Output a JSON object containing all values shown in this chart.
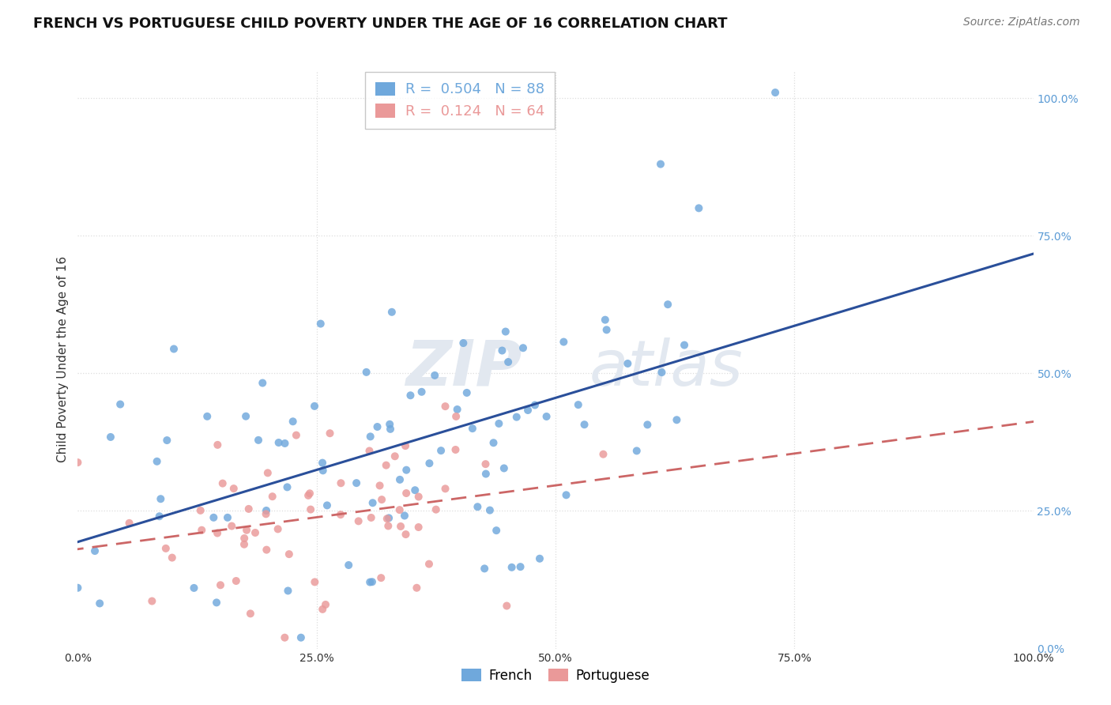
{
  "title": "FRENCH VS PORTUGUESE CHILD POVERTY UNDER THE AGE OF 16 CORRELATION CHART",
  "source": "Source: ZipAtlas.com",
  "ylabel": "Child Poverty Under the Age of 16",
  "xlim": [
    0,
    1
  ],
  "ylim": [
    0,
    1.05
  ],
  "xtick_labels": [
    "0.0%",
    "25.0%",
    "50.0%",
    "75.0%",
    "100.0%"
  ],
  "xtick_vals": [
    0,
    0.25,
    0.5,
    0.75,
    1.0
  ],
  "ytick_labels": [
    "0.0%",
    "25.0%",
    "50.0%",
    "75.0%",
    "100.0%"
  ],
  "ytick_vals": [
    0,
    0.25,
    0.5,
    0.75,
    1.0
  ],
  "french_color": "#6fa8dc",
  "portuguese_color": "#ea9999",
  "french_R": 0.504,
  "french_N": 88,
  "portuguese_R": 0.124,
  "portuguese_N": 64,
  "watermark_zip": "ZIP",
  "watermark_atlas": "atlas",
  "legend_french_label": "French",
  "legend_portuguese_label": "Portuguese",
  "french_seed": 42,
  "portuguese_seed": 99,
  "background_color": "#ffffff",
  "grid_color": "#dddddd",
  "title_fontsize": 13,
  "axis_label_fontsize": 11,
  "tick_fontsize": 10,
  "source_fontsize": 10,
  "french_line_color": "#2a4f9a",
  "portuguese_line_color": "#cc6666"
}
